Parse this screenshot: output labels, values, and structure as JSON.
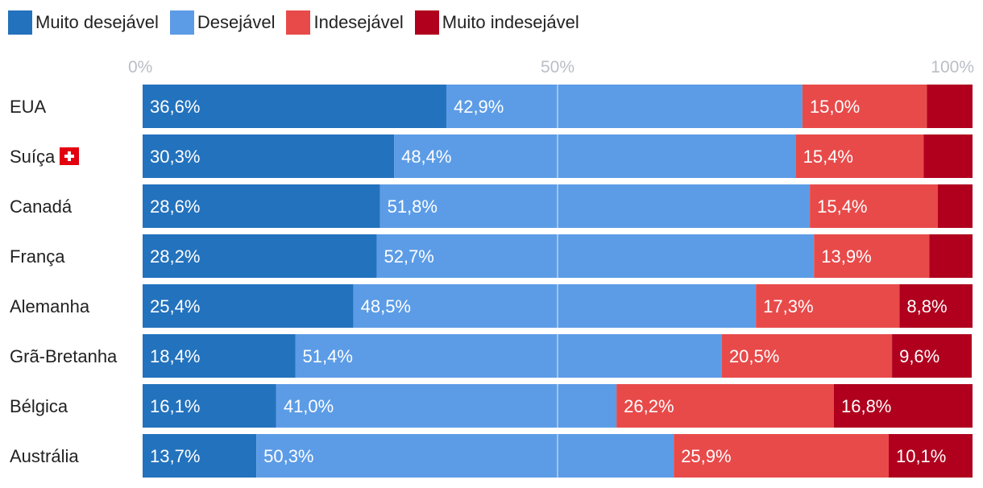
{
  "chart_data": {
    "type": "bar",
    "orientation": "horizontal",
    "stacked": true,
    "normalized": true,
    "legend_position": "top-left",
    "series": [
      {
        "name": "Muito desejável",
        "color": "#2372bd",
        "values": [
          36.6,
          30.3,
          28.6,
          28.2,
          25.4,
          18.4,
          16.1,
          13.7
        ],
        "labels": [
          "36,6%",
          "30,3%",
          "28,6%",
          "28,2%",
          "25,4%",
          "18,4%",
          "16,1%",
          "13,7%"
        ]
      },
      {
        "name": "Desejável",
        "color": "#5c9ce6",
        "values": [
          42.9,
          48.4,
          51.8,
          52.7,
          48.5,
          51.4,
          41.0,
          50.3
        ],
        "labels": [
          "42,9%",
          "48,4%",
          "51,8%",
          "52,7%",
          "48,5%",
          "51,4%",
          "41,0%",
          "50,3%"
        ]
      },
      {
        "name": "Indesejável",
        "color": "#e84a4a",
        "values": [
          15.0,
          15.4,
          15.4,
          13.9,
          17.3,
          20.5,
          26.2,
          25.9
        ],
        "labels": [
          "15,0%",
          "15,4%",
          "15,4%",
          "13,9%",
          "17,3%",
          "20,5%",
          "26,2%",
          "25,9%"
        ]
      },
      {
        "name": "Muito indesejável",
        "color": "#b0001e",
        "values": [
          5.5,
          5.9,
          4.2,
          5.2,
          8.8,
          9.6,
          16.8,
          10.1
        ],
        "labels": [
          "",
          "",
          "",
          "",
          "8,8%",
          "9,6%",
          "16,8%",
          "10,1%"
        ]
      }
    ],
    "categories": [
      "EUA",
      "Suíça",
      "Canadá",
      "França",
      "Alemanha",
      "Grã-Bretanha",
      "Bélgica",
      "Austrália"
    ],
    "flag_icon_category": "Suíça",
    "x_ticks": [
      "0%",
      "50%",
      "100%"
    ],
    "x_tick_values": [
      0,
      50,
      100
    ],
    "xlim": [
      0,
      100
    ],
    "gridlines": [
      50
    ],
    "title": "",
    "xlabel": "",
    "ylabel": ""
  }
}
